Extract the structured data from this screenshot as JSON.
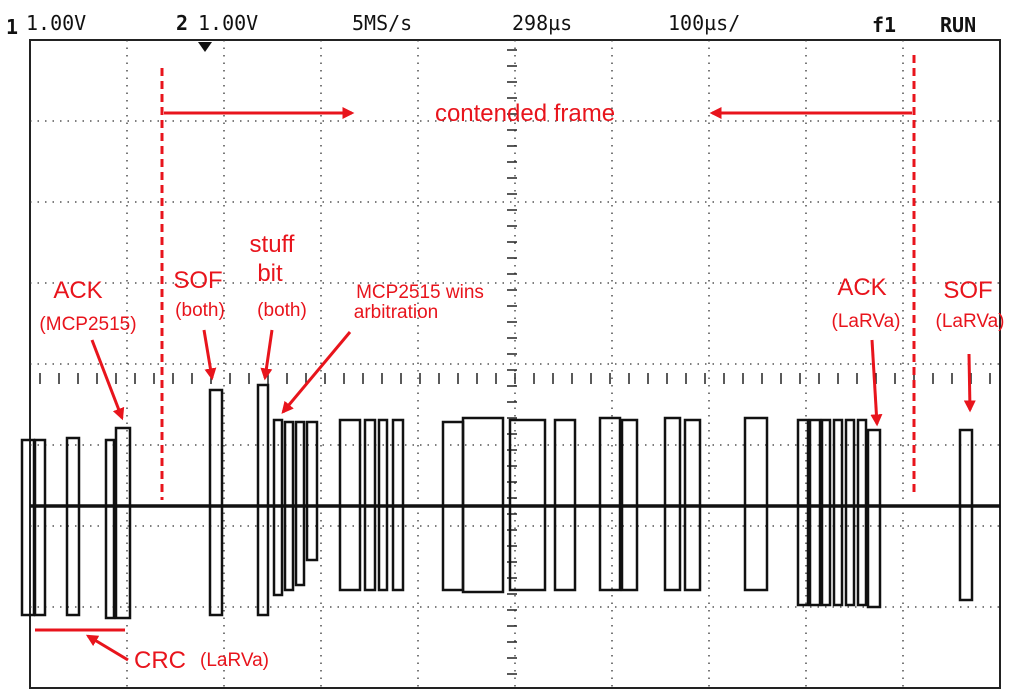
{
  "header": {
    "ch1": "1",
    "ch1_scale": "1.00V",
    "ch2": "2",
    "ch2_scale": "1.00V",
    "sample_rate": "5MS/s",
    "trigger_position": "298µs",
    "time_per_div": "100µs/",
    "trigger_source": "f1",
    "run_state": "RUN"
  },
  "annotations": {
    "contended_frame": "contended frame",
    "ack_mcp": [
      "ACK",
      "(MCP2515)"
    ],
    "sof_both": [
      "SOF",
      "(both)"
    ],
    "stuff_bit": [
      "stuff",
      "bit",
      "(both)"
    ],
    "mcp_wins": [
      "MCP2515 wins",
      "arbitration"
    ],
    "ack_larva": [
      "ACK",
      "(LaRVa)"
    ],
    "sof_larva": [
      "SOF",
      "(LaRVa)"
    ],
    "crc": [
      "CRC",
      "(LaRVa)"
    ]
  }
}
